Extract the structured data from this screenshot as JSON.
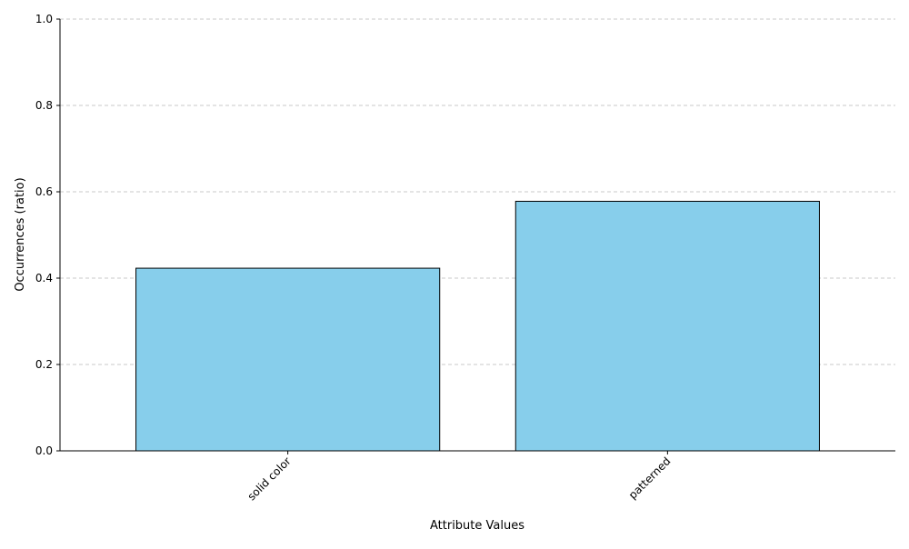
{
  "chart_data": {
    "type": "bar",
    "categories": [
      "solid color",
      "patterned"
    ],
    "values": [
      0.423,
      0.578
    ],
    "title": "",
    "xlabel": "Attribute Values",
    "ylabel": "Occurrences (ratio)",
    "ylim": [
      0,
      1.0
    ],
    "yticks": [
      "0.0",
      "0.2",
      "0.4",
      "0.6",
      "0.8",
      "1.0"
    ],
    "grid": true,
    "legend": "none",
    "bar_color": "#87CEEB",
    "bar_edge_color": "#000000",
    "grid_color": "#c8c8c8"
  }
}
